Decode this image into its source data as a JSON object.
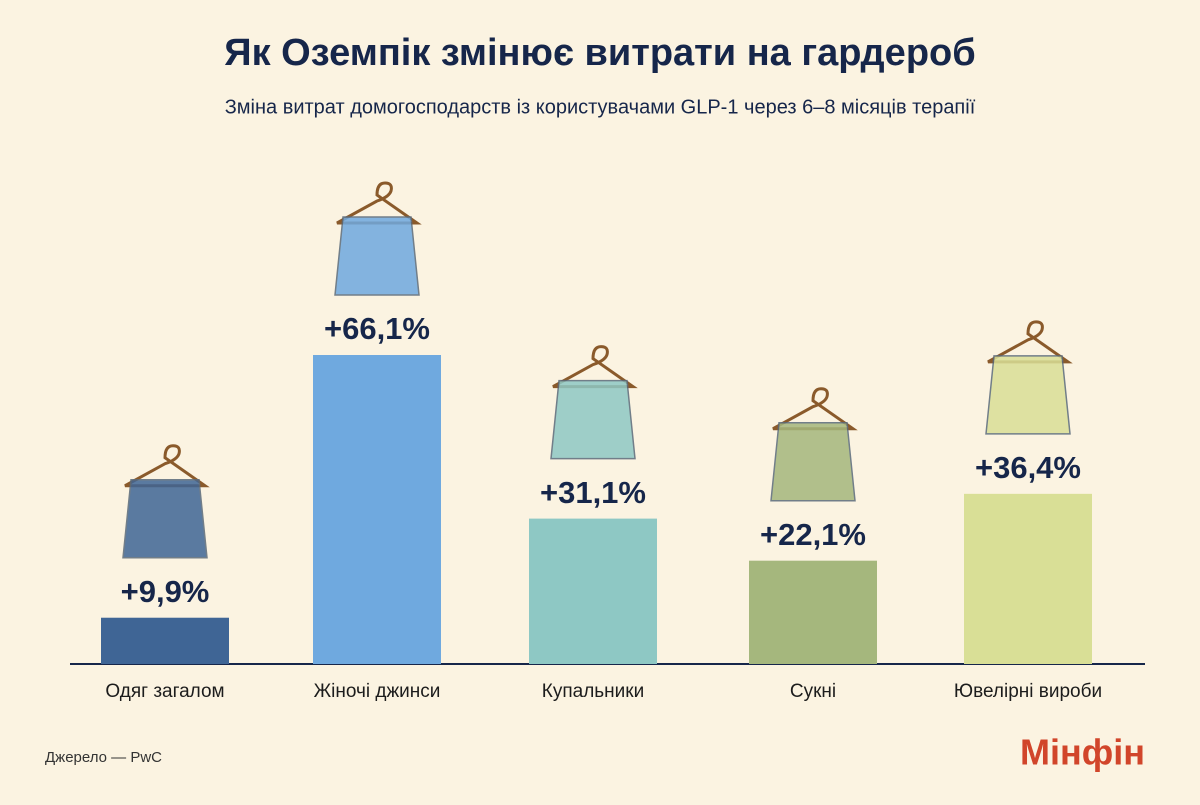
{
  "chart_data": {
    "type": "bar",
    "title": "Як Оземпік змінює витрати на гардероб",
    "subtitle": "Зміна витрат домогосподарств із користувачами GLP-1 через 6–8 місяців терапії",
    "categories": [
      "Одяг загалом",
      "Жіночі джинси",
      "Купальники",
      "Сукні",
      "Ювелірні вироби"
    ],
    "values": [
      9.9,
      66.1,
      31.1,
      22.1,
      36.4
    ],
    "value_labels": [
      "+9,9%",
      "+66,1%",
      "+31,1%",
      "+22,1%",
      "+36,4%"
    ],
    "colors": [
      "#3f6595",
      "#6fa9df",
      "#8ec8c4",
      "#a5b77d",
      "#d9df96"
    ],
    "source": "Джерело — PwC",
    "logo": "Мінфін"
  }
}
